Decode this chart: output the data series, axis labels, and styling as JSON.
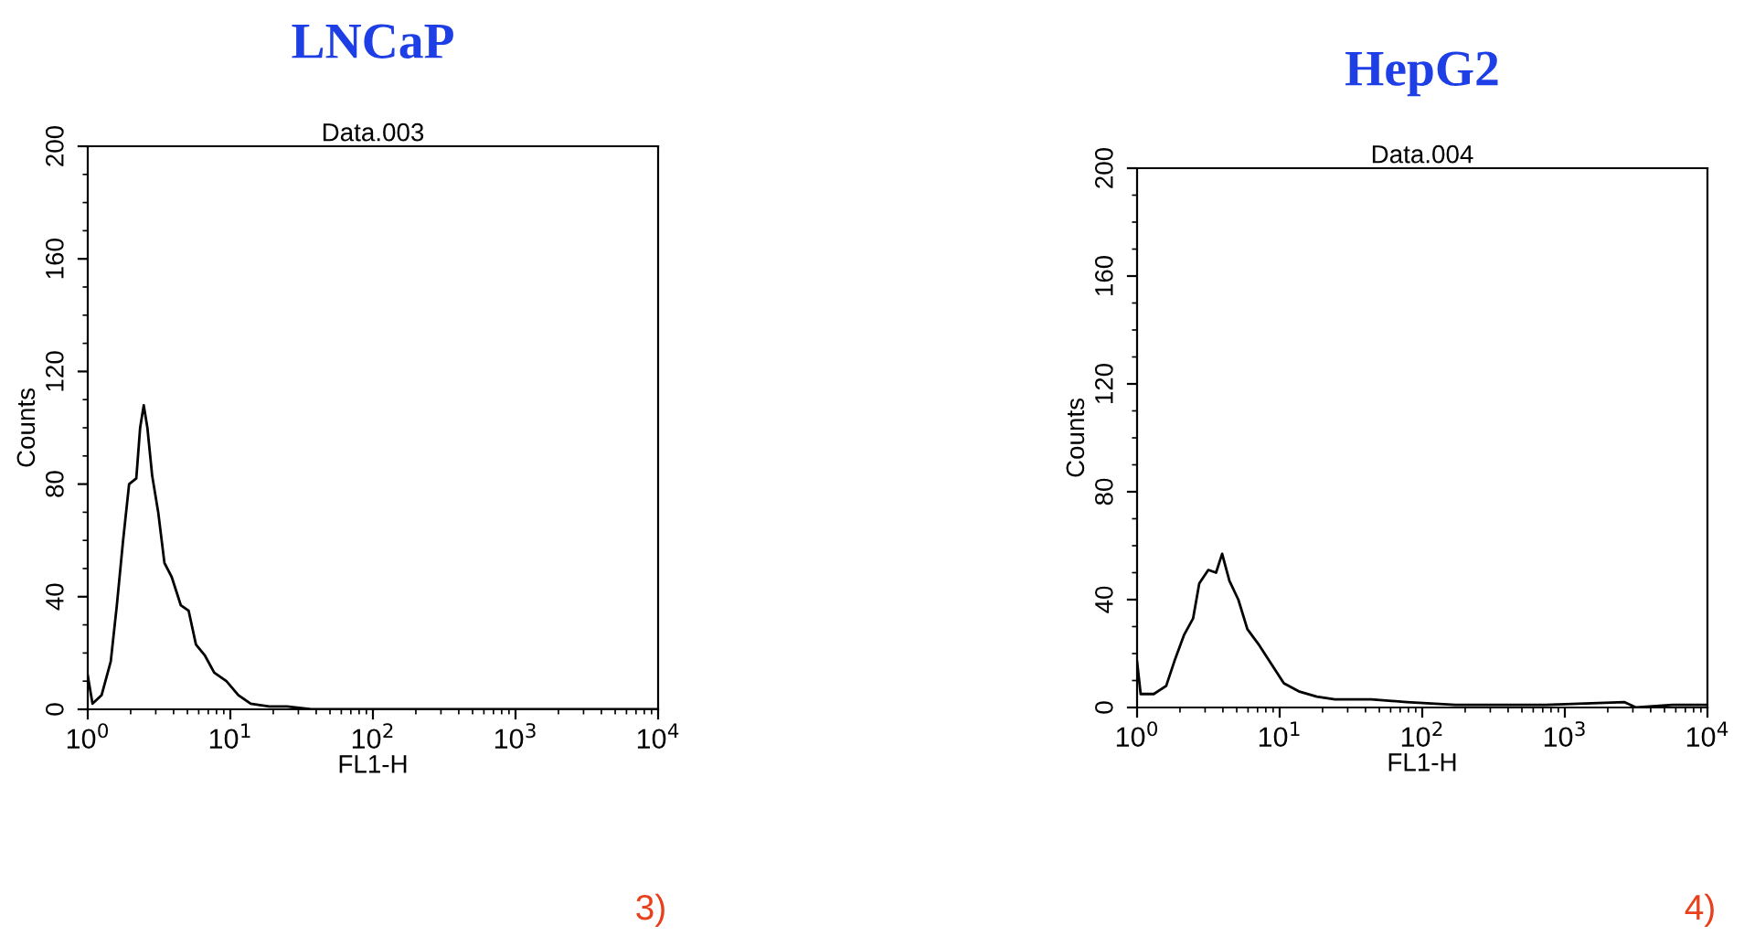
{
  "chart_data": [
    {
      "type": "line",
      "title": "LNCaP",
      "subtitle": "Data.003",
      "xlabel": "FL1-H",
      "ylabel": "Counts",
      "log": "x",
      "grid": false,
      "legend": false,
      "marker": "none",
      "line_style": "solid",
      "xlim": [
        1,
        10000
      ],
      "ylim": [
        0,
        200
      ],
      "yticks": [
        0,
        40,
        80,
        120,
        160,
        200
      ],
      "xticks": [
        {
          "value": 1,
          "label": "10$^{0}$"
        },
        {
          "value": 10,
          "label": "10$^{1}$"
        },
        {
          "value": 100,
          "label": "10$^{2}$"
        },
        {
          "value": 1000,
          "label": "10$^{3}$"
        },
        {
          "value": 10000,
          "label": "10$^{4}$"
        }
      ],
      "series": [
        {
          "color": "#000000",
          "x": [
            1.0,
            1.08,
            1.25,
            1.45,
            1.6,
            1.77,
            1.95,
            2.19,
            2.33,
            2.47,
            2.62,
            2.83,
            3.12,
            3.45,
            3.88,
            4.49,
            5.1,
            5.74,
            6.65,
            7.71,
            9.38,
            11.4,
            13.9,
            18.7,
            25,
            37,
            81,
            577,
            10000
          ],
          "values": [
            12,
            2,
            5,
            17,
            37,
            60,
            80,
            82,
            100,
            108,
            100,
            83,
            70,
            52,
            47,
            37,
            35,
            23,
            19,
            13,
            10,
            5,
            2,
            1,
            1,
            0,
            0,
            0,
            0
          ]
        }
      ],
      "annotations": [
        "3)"
      ]
    },
    {
      "type": "line",
      "title": "HepG2",
      "subtitle": "Data.004",
      "xlabel": "FL1-H",
      "ylabel": "Counts",
      "log": "x",
      "grid": false,
      "legend": false,
      "marker": "none",
      "line_style": "solid",
      "xlim": [
        1,
        10000
      ],
      "ylim": [
        0,
        200
      ],
      "yticks": [
        0,
        40,
        80,
        120,
        160,
        200
      ],
      "xticks": [
        {
          "value": 1,
          "label": "10$^{0}$"
        },
        {
          "value": 10,
          "label": "10$^{1}$"
        },
        {
          "value": 100,
          "label": "10$^{2}$"
        },
        {
          "value": 1000,
          "label": "10$^{3}$"
        },
        {
          "value": 10000,
          "label": "10$^{4}$"
        }
      ],
      "series": [
        {
          "color": "#000000",
          "x": [
            1.0,
            1.06,
            1.31,
            1.6,
            1.85,
            2.14,
            2.47,
            2.73,
            3.16,
            3.58,
            3.95,
            4.44,
            5.13,
            5.94,
            7.21,
            8.77,
            10.7,
            13.6,
            18.2,
            24.4,
            43.8,
            78,
            171,
            736,
            2610,
            3163,
            5690,
            10000
          ],
          "values": [
            17,
            5,
            5,
            8,
            18,
            27,
            33,
            46,
            51,
            50,
            57,
            47,
            40,
            29,
            23,
            16,
            9,
            6,
            4,
            3,
            3,
            2,
            1,
            1,
            2,
            0,
            1,
            1
          ]
        }
      ],
      "annotations": [
        "4)"
      ]
    }
  ]
}
